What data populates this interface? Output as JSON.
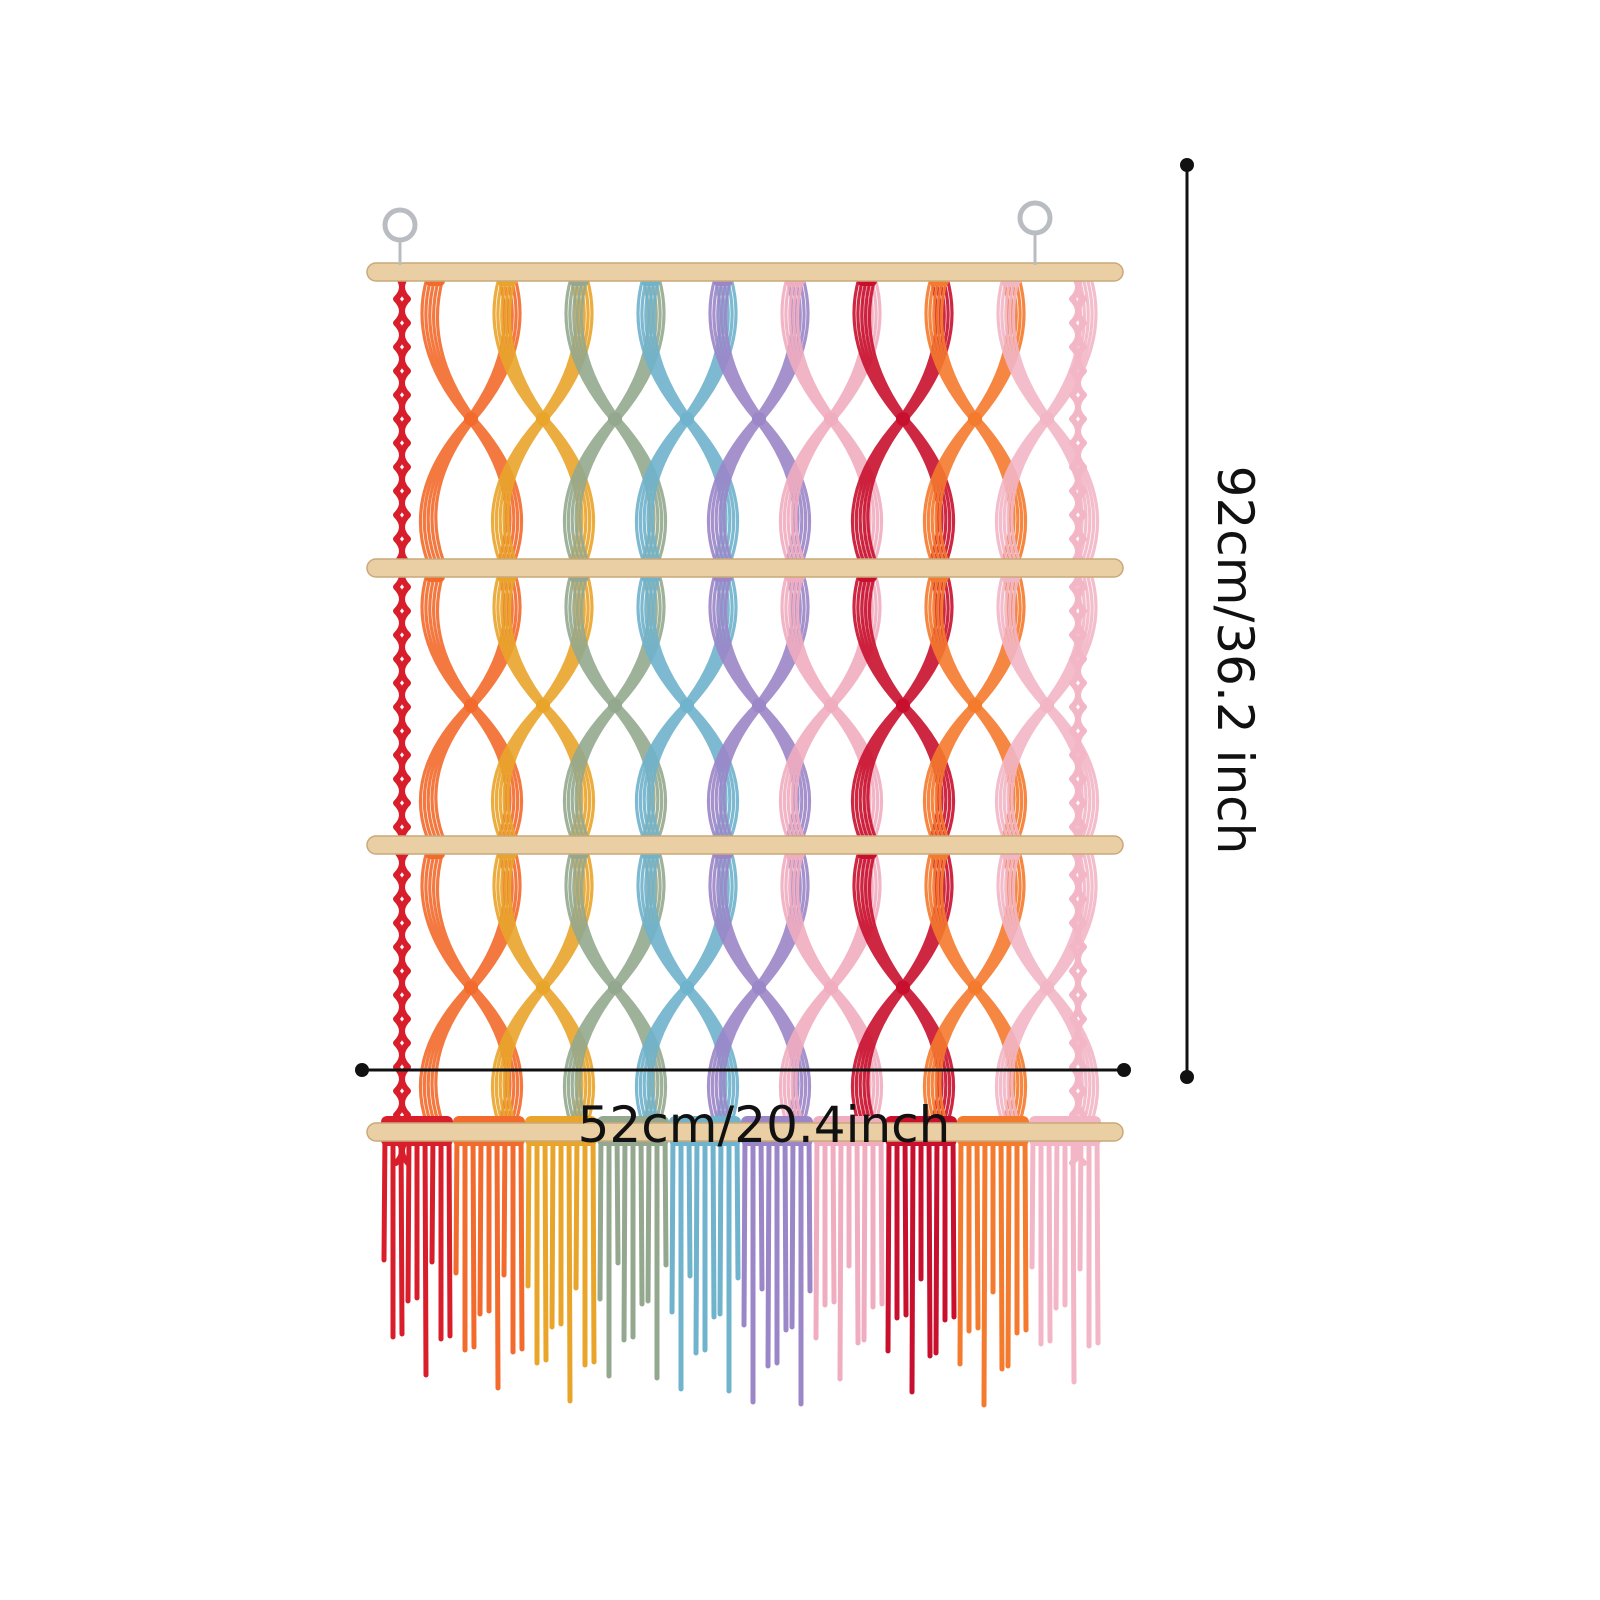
{
  "dimensions": {
    "width_label": "52cm/20.4inch",
    "height_label": "92cm/36.2 inch"
  },
  "colors": {
    "background": "#ffffff",
    "dowel": "#e9cfa3",
    "dowel_edge": "#c9a97a",
    "ring": "#b9bdc2",
    "dimension_line": "#111111",
    "strands": [
      "#d81e2a",
      "#f26a2c",
      "#e9a42a",
      "#93a88e",
      "#6fb3cc",
      "#9b86c8",
      "#f1adc0",
      "#c8102e",
      "#f47a2e",
      "#f2b6c6"
    ]
  },
  "item": {
    "dowel_count": 4,
    "hanging_rings": 2,
    "color_columns": 10
  }
}
